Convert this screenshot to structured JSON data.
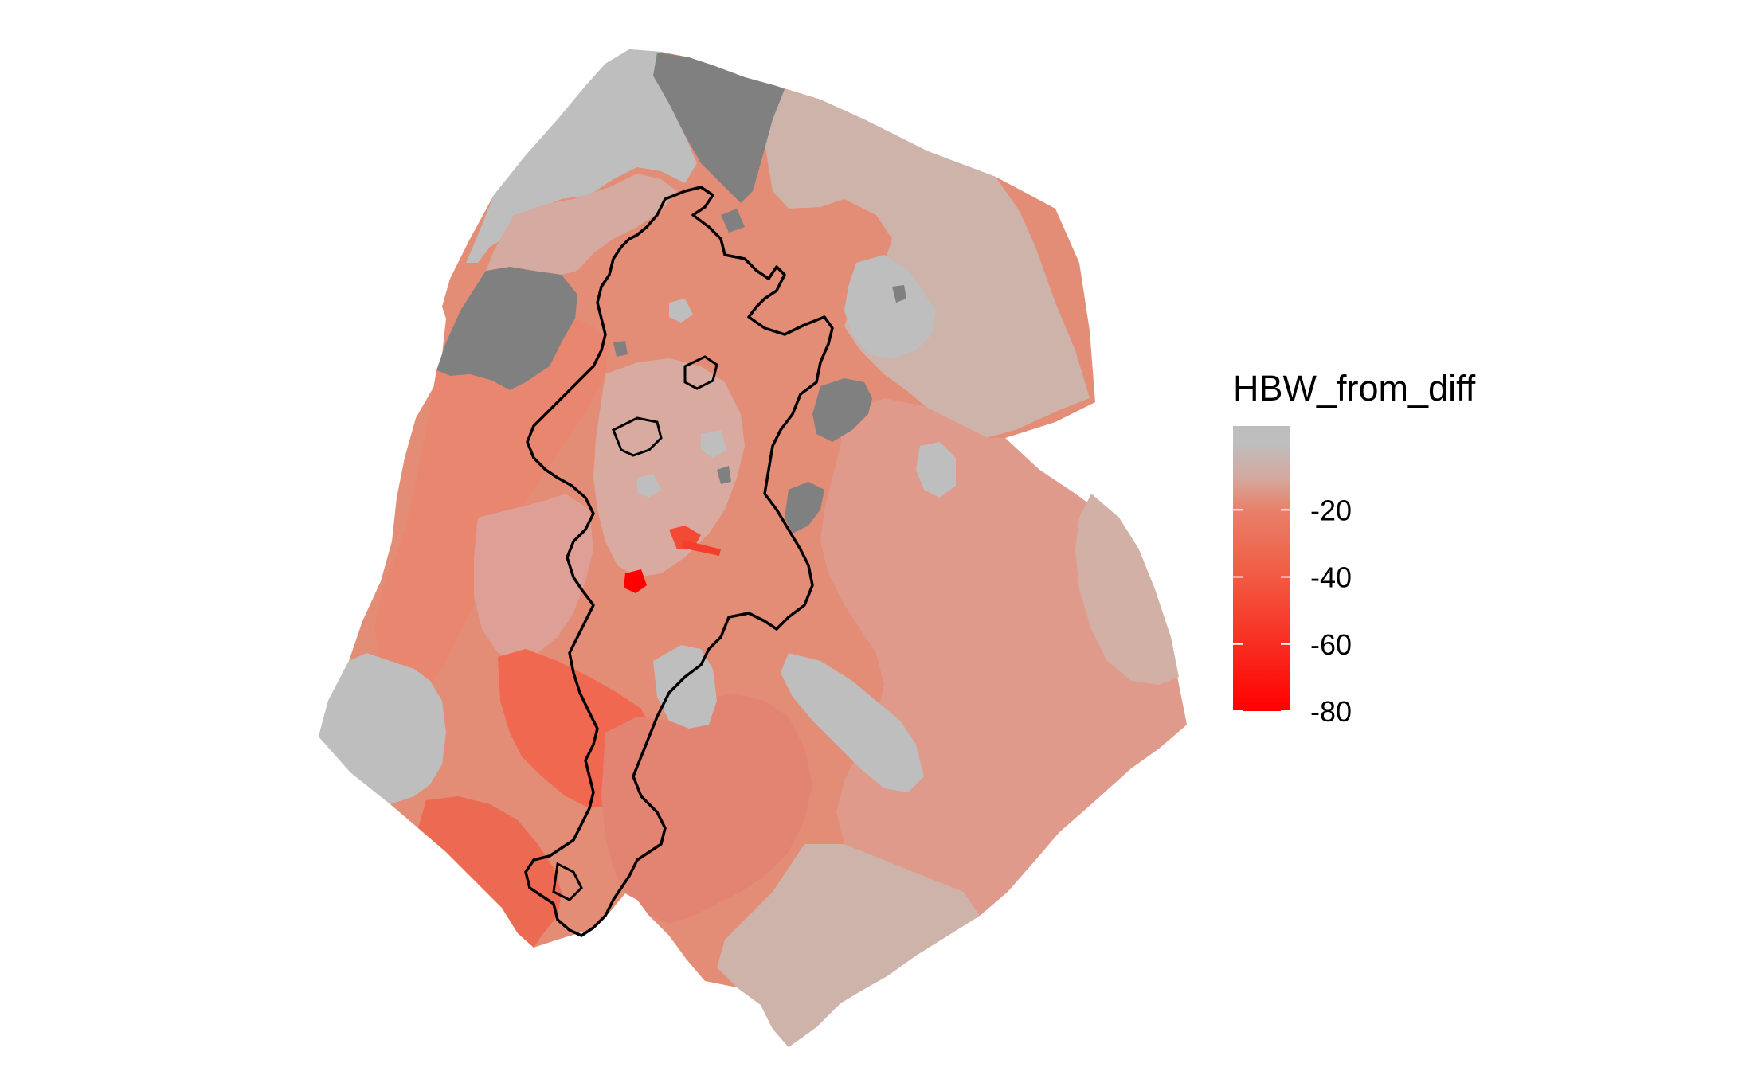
{
  "legend": {
    "title": "HBW_from_diff",
    "scale": [
      {
        "value": 0,
        "color": "#bebebe"
      },
      {
        "value": -10,
        "color": "#d3aaa0"
      },
      {
        "value": -20,
        "color": "#e8806a"
      },
      {
        "value": -40,
        "color": "#f25a42"
      },
      {
        "value": -80,
        "color": "#ff0000"
      }
    ],
    "ticks": [
      {
        "value": -20,
        "label": "-20"
      },
      {
        "value": -40,
        "label": "-40"
      },
      {
        "value": -60,
        "label": "-60"
      },
      {
        "value": -80,
        "label": "-80"
      }
    ],
    "range": [
      -80,
      5
    ]
  },
  "palette": {
    "no_data": "#808080",
    "light_grey": "#bebebe",
    "pinkish": "#cdb3aa",
    "salmon_light": "#dea096",
    "salmon": "#e78a74",
    "coral": "#ee7059",
    "red_strong": "#f04a35",
    "red_max": "#ff0000",
    "boundary": "#000000"
  }
}
